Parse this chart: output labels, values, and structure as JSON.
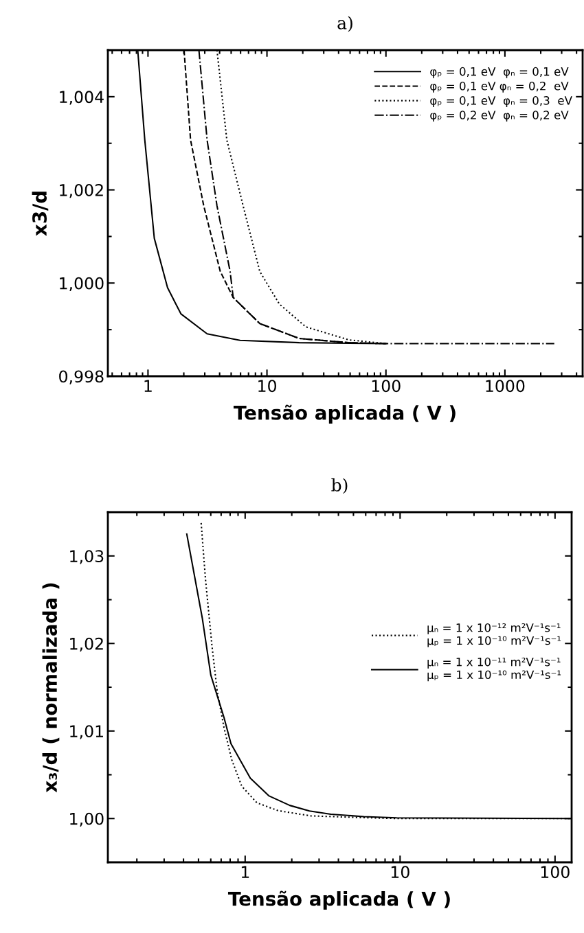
{
  "chart_data": [
    {
      "type": "line",
      "title": "a)",
      "xlabel": "Tensão aplicada ( V )",
      "ylabel": "x3/d",
      "log": "x",
      "xlim": [
        0.46,
        4500
      ],
      "xticks": [
        1,
        10,
        100,
        1000
      ],
      "ylim": [
        0.998,
        1.005
      ],
      "yticks": [
        {
          "value": 0.998,
          "label": "0,998"
        },
        {
          "value": 1.0,
          "label": "1,000"
        },
        {
          "value": 1.002,
          "label": "1,002"
        },
        {
          "value": 1.004,
          "label": "1,004"
        }
      ],
      "grid": false,
      "legend": "top right",
      "marker": "none",
      "series": [
        {
          "name": "φₚ = 0,1 eV  φₙ = 0,1 eV",
          "color": "#000000",
          "line_style": "solid",
          "x": [
            0.82,
            0.94,
            1.13,
            1.46,
            1.89,
            3.14,
            5.94,
            18.7,
            100
          ],
          "values": [
            1.005,
            1.00307,
            1.00096,
            0.9999,
            0.99934,
            0.99891,
            0.99877,
            0.99872,
            0.9987
          ]
        },
        {
          "name": "φₚ = 0,1 eV φₙ = 0,2  eV",
          "color": "#000000",
          "line_style": "dashed",
          "x": [
            2.01,
            2.28,
            2.94,
            4.05,
            5.2,
            8.7,
            18.7,
            48.8,
            100
          ],
          "values": [
            1.005,
            1.00307,
            1.00166,
            1.00025,
            0.99969,
            0.99913,
            0.99881,
            0.99872,
            0.9987
          ]
        },
        {
          "name": "φₚ = 0,1 eV  φₙ = 0,3  eV",
          "color": "#000000",
          "line_style": "dotted",
          "x": [
            3.8,
            4.6,
            6.3,
            8.7,
            12.7,
            21.2,
            48.8,
            100
          ],
          "values": [
            1.005,
            1.00307,
            1.00166,
            1.00025,
            0.99955,
            0.99906,
            0.99878,
            0.9987
          ]
        },
        {
          "name": "φₚ = 0,2 eV  φₙ = 0,2 eV",
          "color": "#000000",
          "line_style": "dashdot",
          "x": [
            2.68,
            3.14,
            3.8,
            4.9,
            5.2,
            8.7,
            18.7,
            48.8,
            100,
            2600
          ],
          "values": [
            1.005,
            1.00307,
            1.00166,
            1.00025,
            0.99969,
            0.99913,
            0.99881,
            0.99872,
            0.9987,
            0.9987
          ]
        }
      ]
    },
    {
      "type": "line",
      "title": "b)",
      "xlabel": "Tensão aplicada ( V )",
      "ylabel": "x₃/d ( normalizada )",
      "log": "x",
      "xlim": [
        0.13,
        128
      ],
      "xticks": [
        1,
        10,
        100
      ],
      "ylim": [
        0.995,
        1.035
      ],
      "yticks": [
        {
          "value": 1.0,
          "label": "1,00"
        },
        {
          "value": 1.01,
          "label": "1,01"
        },
        {
          "value": 1.02,
          "label": "1,02"
        },
        {
          "value": 1.03,
          "label": "1,03"
        }
      ],
      "grid": false,
      "legend": "right",
      "marker": "none",
      "series": [
        {
          "name": "μₙ = 1 x 10⁻¹² m²V⁻¹s⁻¹\nμₚ = 1 x 10⁻¹⁰ m²V⁻¹s⁻¹",
          "color": "#000000",
          "line_style": "dotted",
          "x": [
            0.52,
            0.555,
            0.61,
            0.66,
            0.73,
            0.82,
            0.95,
            1.19,
            1.63,
            2.66,
            5.83,
            9.5,
            128
          ],
          "values": [
            1.03375,
            1.0273,
            1.0198,
            1.01455,
            1.0104,
            1.0067,
            1.0037,
            1.0018,
            1.0009,
            1.0003,
            1.0001,
            1.0,
            1.0
          ]
        },
        {
          "name": "μₙ = 1 x 10⁻¹¹ m²V⁻¹s⁻¹\nμₚ = 1 x 10⁻¹⁰ m²V⁻¹s⁻¹",
          "color": "#000000",
          "line_style": "solid",
          "x": [
            0.42,
            0.53,
            0.6,
            0.73,
            0.81,
            1.08,
            1.42,
            1.94,
            2.6,
            3.57,
            5.83,
            9.5,
            128
          ],
          "values": [
            1.0325,
            1.0228,
            1.0164,
            1.01155,
            1.00855,
            1.0046,
            1.0026,
            1.0015,
            1.00086,
            1.00049,
            1.00022,
            1.00008,
            1.0
          ]
        }
      ]
    }
  ]
}
